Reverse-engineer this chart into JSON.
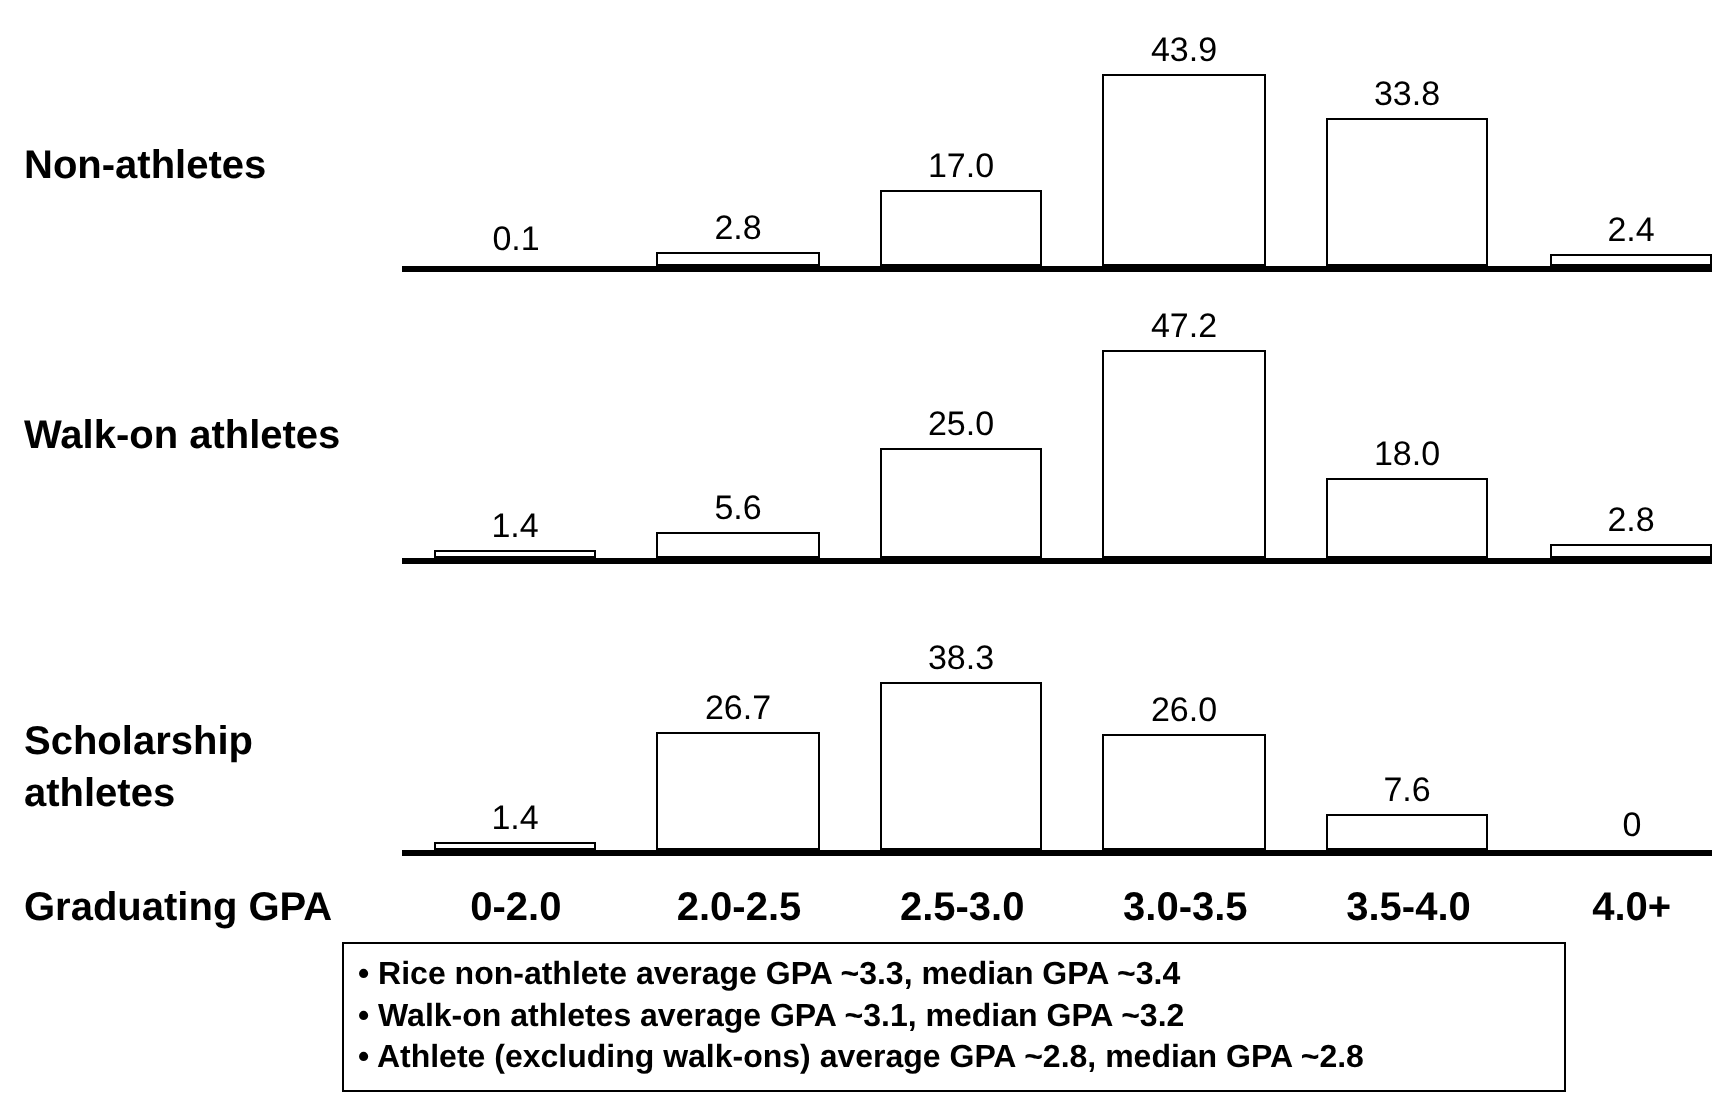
{
  "chart_data": [
    {
      "type": "bar",
      "title": "Non-athletes",
      "categories": [
        "0-2.0",
        "2.0-2.5",
        "2.5-3.0",
        "3.0-3.5",
        "3.5-4.0",
        "4.0+"
      ],
      "values": [
        0.1,
        2.8,
        17.0,
        43.9,
        33.8,
        2.4
      ],
      "value_labels": [
        "0.1",
        "2.8",
        "17.0",
        "43.9",
        "33.8",
        "2.4"
      ],
      "color": "#ffffff",
      "tick_labels": false
    },
    {
      "type": "bar",
      "title": "Walk-on athletes",
      "categories": [
        "0-2.0",
        "2.0-2.5",
        "2.5-3.0",
        "3.0-3.5",
        "3.5-4.0",
        "4.0+"
      ],
      "values": [
        1.4,
        5.6,
        25.0,
        47.2,
        18.0,
        2.8
      ],
      "value_labels": [
        "1.4",
        "5.6",
        "25.0",
        "47.2",
        "18.0",
        "2.8"
      ],
      "color": "#ffffff",
      "tick_labels": false
    },
    {
      "type": "bar",
      "title": "Scholarship athletes",
      "xlabel": "Graduating GPA",
      "categories": [
        "0-2.0",
        "2.0-2.5",
        "2.5-3.0",
        "3.0-3.5",
        "3.5-4.0",
        "4.0+"
      ],
      "values": [
        1.4,
        26.7,
        38.3,
        26.0,
        7.6,
        0
      ],
      "value_labels": [
        "1.4",
        "26.7",
        "38.3",
        "26.0",
        "7.6",
        "0"
      ],
      "color": "#ffffff",
      "tick_labels": "x",
      "annotations": [
        "• Rice non-athlete average GPA ~3.3, median GPA ~3.4",
        "• Walk-on athletes average GPA ~3.1, median GPA ~3.2",
        "• Athlete (excluding walk-ons) average GPA ~2.8, median GPA ~2.8"
      ]
    }
  ]
}
